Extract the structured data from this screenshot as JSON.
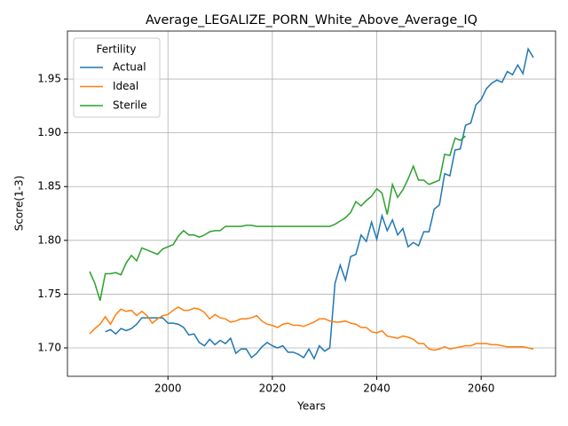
{
  "chart_data": {
    "type": "line",
    "title": "Average_LEGALIZE_PORN_White_Above_Average_IQ",
    "xlabel": "Years",
    "ylabel": "Score(1-3)",
    "legend_title": "Fertility",
    "legend": "upper left",
    "grid": true,
    "x": [
      1985,
      1986,
      1987,
      1988,
      1989,
      1990,
      1991,
      1992,
      1993,
      1994,
      1995,
      1996,
      1997,
      1998,
      1999,
      2000,
      2001,
      2002,
      2003,
      2004,
      2005,
      2006,
      2007,
      2008,
      2009,
      2010,
      2011,
      2012,
      2013,
      2014,
      2015,
      2016,
      2017,
      2018,
      2019,
      2020,
      2021,
      2022,
      2023,
      2024,
      2025,
      2026,
      2027,
      2028,
      2029,
      2030,
      2031,
      2032,
      2033,
      2034,
      2035,
      2036,
      2037,
      2038,
      2039,
      2040,
      2041,
      2042,
      2043,
      2044,
      2045,
      2046,
      2047,
      2048,
      2049,
      2050,
      2051,
      2052,
      2053,
      2054,
      2055,
      2056,
      2057,
      2058,
      2059,
      2060,
      2061,
      2062,
      2063,
      2064,
      2065,
      2066,
      2067,
      2068,
      2069,
      2070
    ],
    "series": [
      {
        "name": "Actual",
        "color": "#1f77b4",
        "values": [
          null,
          null,
          null,
          1.715,
          1.717,
          1.713,
          1.718,
          1.716,
          1.718,
          1.722,
          1.728,
          1.728,
          1.728,
          1.728,
          1.728,
          1.723,
          1.723,
          1.722,
          1.719,
          1.712,
          1.713,
          1.705,
          1.702,
          1.708,
          1.703,
          1.707,
          1.704,
          1.709,
          1.695,
          1.699,
          1.699,
          1.691,
          1.695,
          1.701,
          1.705,
          1.702,
          1.7,
          1.702,
          1.696,
          1.696,
          1.694,
          1.691,
          1.699,
          1.69,
          1.702,
          1.697,
          1.7,
          1.76,
          1.777,
          1.763,
          1.785,
          1.787,
          1.805,
          1.799,
          1.817,
          1.801,
          1.823,
          1.809,
          1.819,
          1.805,
          1.811,
          1.794,
          1.798,
          1.795,
          1.808,
          1.808,
          1.829,
          1.833,
          1.862,
          1.86,
          1.884,
          1.885,
          1.907,
          1.909,
          1.926,
          1.931,
          1.941,
          1.946,
          1.949,
          1.947,
          1.957,
          1.954,
          1.963,
          1.955,
          1.978,
          1.97
        ]
      },
      {
        "name": "Ideal",
        "color": "#ff7f0e",
        "values": [
          1.713,
          1.718,
          1.722,
          1.729,
          1.722,
          1.731,
          1.736,
          1.734,
          1.735,
          1.73,
          1.734,
          1.73,
          1.723,
          1.727,
          1.73,
          1.731,
          1.735,
          1.738,
          1.735,
          1.735,
          1.737,
          1.736,
          1.733,
          1.727,
          1.731,
          1.728,
          1.727,
          1.724,
          1.725,
          1.727,
          1.727,
          1.728,
          1.73,
          1.725,
          1.722,
          1.721,
          1.719,
          1.722,
          1.723,
          1.721,
          1.721,
          1.72,
          1.722,
          1.724,
          1.727,
          1.727,
          1.725,
          1.724,
          1.724,
          1.725,
          1.723,
          1.722,
          1.719,
          1.719,
          1.715,
          1.714,
          1.716,
          1.711,
          1.71,
          1.709,
          1.711,
          1.71,
          1.708,
          1.704,
          1.704,
          1.699,
          1.698,
          1.699,
          1.701,
          1.699,
          1.7,
          1.701,
          1.702,
          1.702,
          1.704,
          1.704,
          1.704,
          1.703,
          1.703,
          1.702,
          1.701,
          1.701,
          1.701,
          1.701,
          1.7,
          1.699
        ]
      },
      {
        "name": "Sterile",
        "color": "#2ca02c",
        "values": [
          1.771,
          1.76,
          1.744,
          1.769,
          1.769,
          1.77,
          1.768,
          1.779,
          1.786,
          1.781,
          1.793,
          1.791,
          1.789,
          1.787,
          1.792,
          1.794,
          1.796,
          1.804,
          1.809,
          1.805,
          1.805,
          1.803,
          1.805,
          1.808,
          1.809,
          1.809,
          1.813,
          1.813,
          1.813,
          1.813,
          1.814,
          1.814,
          1.813,
          1.813,
          1.813,
          1.813,
          1.813,
          1.813,
          1.813,
          1.813,
          1.813,
          1.813,
          1.813,
          1.813,
          1.813,
          1.813,
          1.813,
          1.815,
          1.818,
          1.821,
          1.826,
          1.836,
          1.832,
          1.837,
          1.841,
          1.848,
          1.844,
          1.824,
          1.852,
          1.84,
          1.847,
          1.857,
          1.869,
          1.856,
          1.856,
          1.852,
          1.854,
          1.856,
          1.88,
          1.879,
          1.895,
          1.893,
          1.897,
          null,
          null,
          null,
          null,
          null,
          null,
          null,
          null,
          null,
          null,
          null,
          null,
          null
        ]
      }
    ],
    "xlim": [
      1980.75,
      2074.25
    ],
    "xticks": [
      2000,
      2020,
      2040,
      2060
    ],
    "ylim": [
      1.6736,
      1.9946
    ],
    "yticks": [
      {
        "value": 1.7,
        "label": "1.70"
      },
      1.75,
      {
        "value": 1.8,
        "label": "1.80"
      },
      1.85,
      {
        "value": 1.9,
        "label": "1.90"
      },
      1.95
    ]
  }
}
